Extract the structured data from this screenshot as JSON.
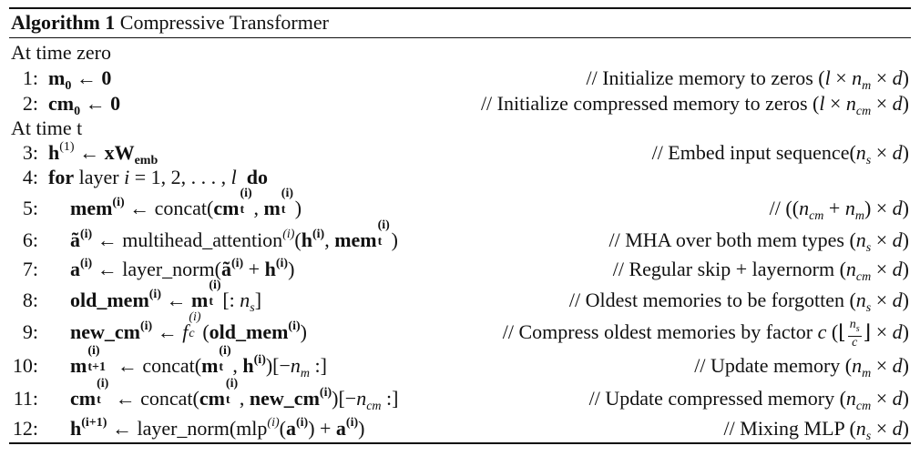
{
  "algorithm": {
    "label": "Algorithm 1",
    "title": "Compressive Transformer"
  },
  "sections": {
    "time_zero": "At time zero",
    "time_t": "At time t"
  },
  "steps": [
    {
      "number": "1:",
      "text": "m₀ ← 0",
      "comment": "// Initialize memory to zeros (l × n_m × d)"
    },
    {
      "number": "2:",
      "text": "cm₀ ← 0",
      "comment": "// Initialize compressed memory to zeros (l × n_cm × d)"
    },
    {
      "number": "3:",
      "text": "h^(1) ← xW_emb",
      "comment": "// Embed input sequence(n_s × d)"
    },
    {
      "number": "4:",
      "text": "for layer i = 1, 2, . . . , l do",
      "comment": ""
    },
    {
      "number": "5:",
      "text": "mem^(i) ← concat(cm_t^(i), m_t^(i))",
      "comment": "// ((n_cm + n_m) × d)"
    },
    {
      "number": "6:",
      "text": "ã^(i) ← multihead_attention^(i)(h^(i), mem_t^(i))",
      "comment": "// MHA over both mem types (n_s × d)"
    },
    {
      "number": "7:",
      "text": "a^(i) ← layer_norm(ã^(i) + h^(i))",
      "comment": "// Regular skip + layernorm (n_cm × d)"
    },
    {
      "number": "8:",
      "text": "old_mem^(i) ← m_t^(i)[: n_s]",
      "comment": "// Oldest memories to be forgotten (n_s × d)"
    },
    {
      "number": "9:",
      "text": "new_cm^(i) ← f_c^(i)(old_mem^(i))",
      "comment": "// Compress oldest memories by factor c (⌊n_s/c⌋ × d)"
    },
    {
      "number": "10:",
      "text": "m_t+1^(i) ← concat(m_t^(i), h^(i))[−n_m :]",
      "comment": "// Update memory (n_m × d)"
    },
    {
      "number": "11:",
      "text": "cm_t^(i) ← concat(cm_t^(i), new_cm^(i))[−n_cm :]",
      "comment": "// Update compressed memory (n_cm × d)"
    },
    {
      "number": "12:",
      "text": "h^(i+1) ← layer_norm(mlp^(i)(a^(i)) + a^(i))",
      "comment": "// Mixing MLP (n_s × d)"
    }
  ]
}
